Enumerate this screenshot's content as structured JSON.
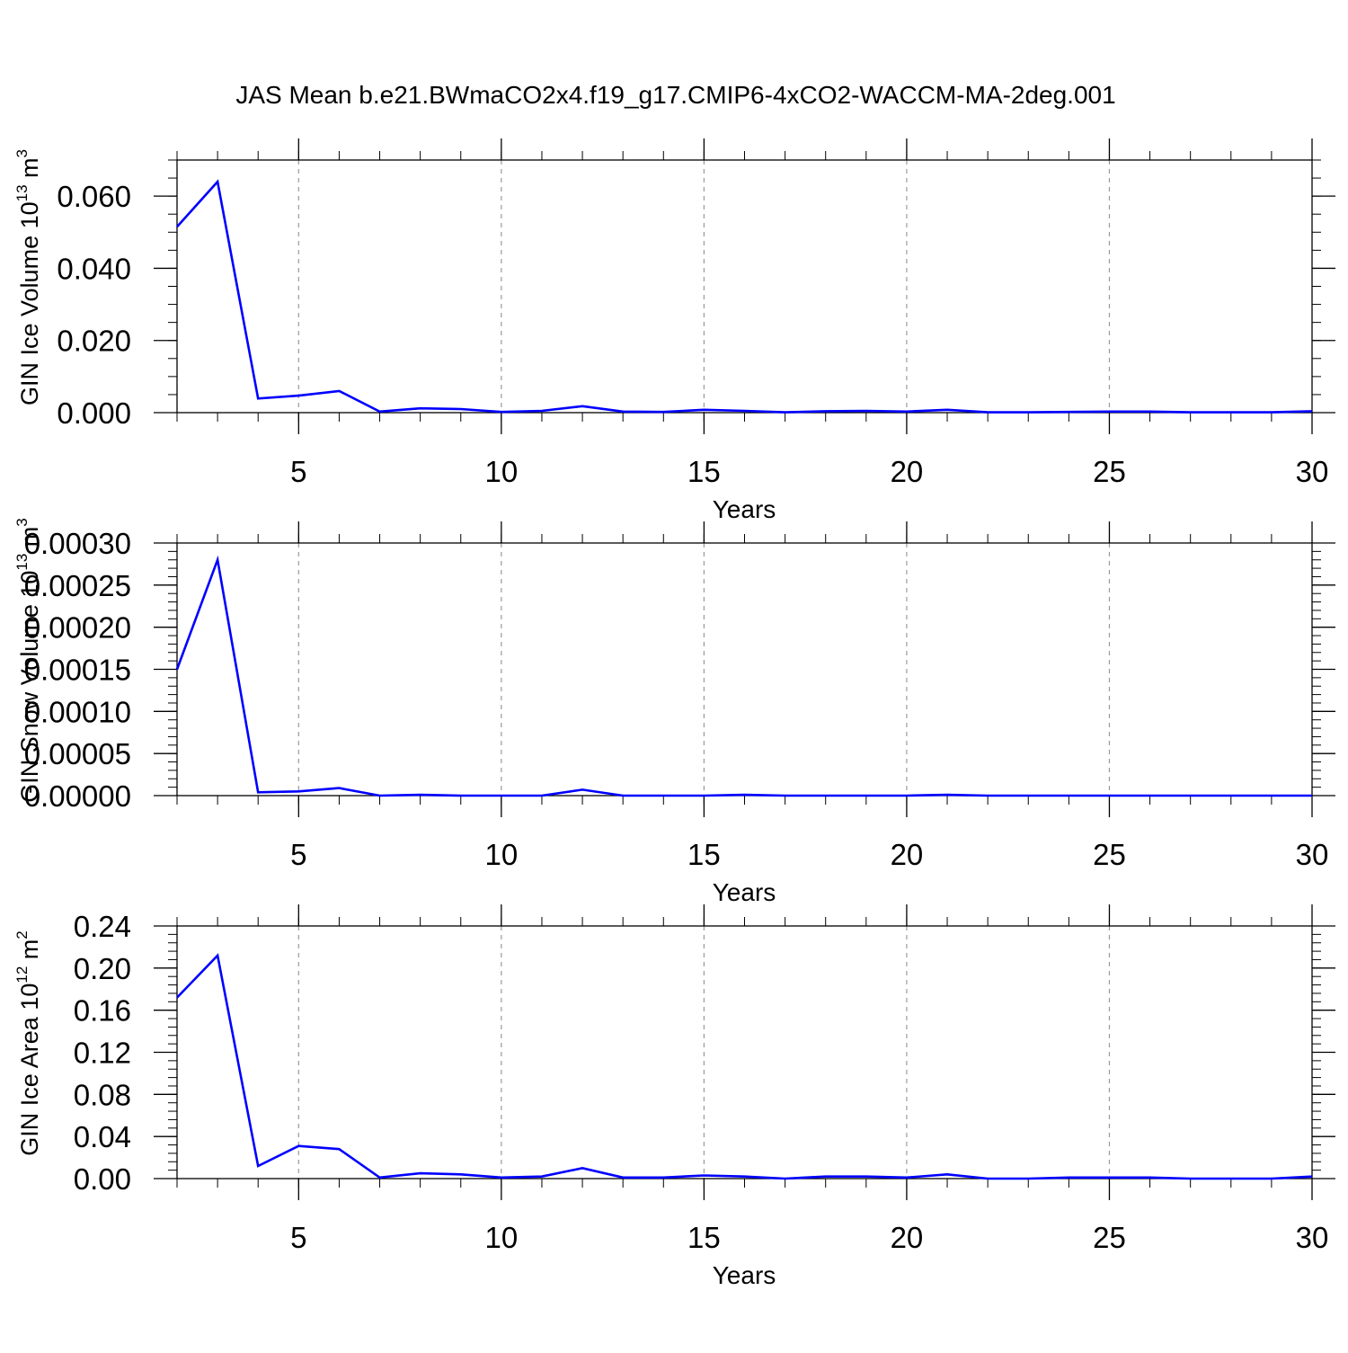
{
  "title": "JAS Mean b.e21.BWmaCO2x4.f19_g17.CMIP6-4xCO2-WACCM-MA-2deg.001",
  "colors": {
    "series": "#0000ff",
    "axis": "#000000",
    "grid": "#9a9a9a",
    "background": "#ffffff"
  },
  "chart_data": [
    {
      "type": "line",
      "xlabel": "Years",
      "ylabel": {
        "text": "GIN Ice Volume 10",
        "sup": "13",
        "unit": " m",
        "unit_sup": "3"
      },
      "xlim": [
        2,
        30
      ],
      "ylim": [
        0.0,
        0.07
      ],
      "x_ticks": [
        5,
        10,
        15,
        20,
        25,
        30
      ],
      "x_minor_step": 1,
      "y_ticks": [
        "0.000",
        "0.020",
        "0.040",
        "0.060"
      ],
      "y_tick_values": [
        0.0,
        0.02,
        0.04,
        0.06
      ],
      "y_minor_step": 0.005,
      "grid": "vertical-dashed",
      "x": [
        2,
        3,
        4,
        5,
        6,
        7,
        8,
        9,
        10,
        11,
        12,
        13,
        14,
        15,
        16,
        17,
        18,
        19,
        20,
        21,
        22,
        23,
        24,
        25,
        26,
        27,
        28,
        29,
        30
      ],
      "values": [
        0.0515,
        0.064,
        0.0039,
        0.0047,
        0.006,
        0.0003,
        0.0012,
        0.001,
        0.0002,
        0.0005,
        0.0018,
        0.0003,
        0.0002,
        0.0008,
        0.0005,
        0.0001,
        0.0004,
        0.0005,
        0.0003,
        0.0008,
        0.0001,
        0.0001,
        0.0002,
        0.0003,
        0.0003,
        0.0001,
        0.0001,
        0.0001,
        0.0004
      ]
    },
    {
      "type": "line",
      "xlabel": "Years",
      "ylabel": {
        "text": "GIN Snow Volume 10",
        "sup": "13",
        "unit": " m",
        "unit_sup": "3"
      },
      "xlim": [
        2,
        30
      ],
      "ylim": [
        0.0,
        0.0003
      ],
      "x_ticks": [
        5,
        10,
        15,
        20,
        25,
        30
      ],
      "x_minor_step": 1,
      "y_ticks": [
        "0.00000",
        "0.00005",
        "0.00010",
        "0.00015",
        "0.00020",
        "0.00025",
        "0.00030"
      ],
      "y_tick_values": [
        0.0,
        5e-05,
        0.0001,
        0.00015,
        0.0002,
        0.00025,
        0.0003
      ],
      "y_minor_step": 1e-05,
      "grid": "vertical-dashed",
      "x": [
        2,
        3,
        4,
        5,
        6,
        7,
        8,
        9,
        10,
        11,
        12,
        13,
        14,
        15,
        16,
        17,
        18,
        19,
        20,
        21,
        22,
        23,
        24,
        25,
        26,
        27,
        28,
        29,
        30
      ],
      "values": [
        0.00015,
        0.00028,
        4e-06,
        5e-06,
        9e-06,
        0.0,
        1e-06,
        0.0,
        0.0,
        0.0,
        7e-06,
        0.0,
        0.0,
        0.0,
        1e-06,
        0.0,
        0.0,
        0.0,
        0.0,
        1e-06,
        0.0,
        0.0,
        0.0,
        0.0,
        0.0,
        0.0,
        0.0,
        0.0,
        0.0
      ]
    },
    {
      "type": "line",
      "xlabel": "Years",
      "ylabel": {
        "text": "GIN Ice Area 10",
        "sup": "12",
        "unit": " m",
        "unit_sup": "2"
      },
      "xlim": [
        2,
        30
      ],
      "ylim": [
        0.0,
        0.24
      ],
      "x_ticks": [
        5,
        10,
        15,
        20,
        25,
        30
      ],
      "x_minor_step": 1,
      "y_ticks": [
        "0.00",
        "0.04",
        "0.08",
        "0.12",
        "0.16",
        "0.20",
        "0.24"
      ],
      "y_tick_values": [
        0.0,
        0.04,
        0.08,
        0.12,
        0.16,
        0.2,
        0.24
      ],
      "y_minor_step": 0.008,
      "grid": "vertical-dashed",
      "x": [
        2,
        3,
        4,
        5,
        6,
        7,
        8,
        9,
        10,
        11,
        12,
        13,
        14,
        15,
        16,
        17,
        18,
        19,
        20,
        21,
        22,
        23,
        24,
        25,
        26,
        27,
        28,
        29,
        30
      ],
      "values": [
        0.172,
        0.212,
        0.012,
        0.031,
        0.028,
        0.001,
        0.005,
        0.004,
        0.001,
        0.002,
        0.01,
        0.001,
        0.001,
        0.003,
        0.002,
        0.0,
        0.002,
        0.002,
        0.001,
        0.004,
        0.0,
        0.0,
        0.001,
        0.001,
        0.001,
        0.0,
        0.0,
        0.0,
        0.002
      ]
    }
  ]
}
